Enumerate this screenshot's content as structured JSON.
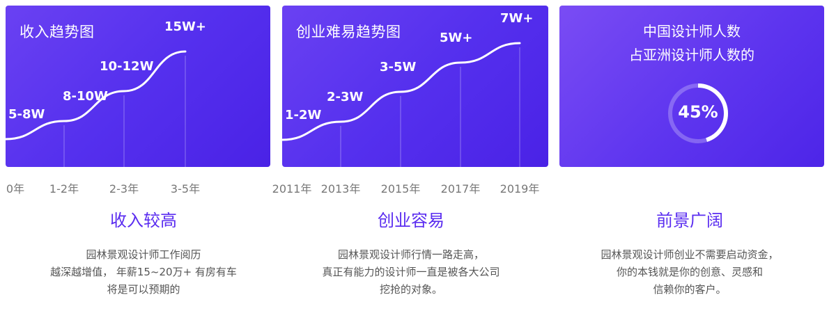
{
  "chart_data": [
    {
      "type": "line",
      "title": "收入趋势图",
      "categories": [
        "0年",
        "1-2年",
        "2-3年",
        "3-5年"
      ],
      "point_labels": [
        "5-8W",
        "8-10W",
        "10-12W",
        "15W+"
      ],
      "values": [
        6.5,
        9,
        11,
        15
      ]
    },
    {
      "type": "line",
      "title": "创业难易趋势图",
      "categories": [
        "2011年",
        "2013年",
        "2015年",
        "2017年",
        "2019年"
      ],
      "point_labels": [
        "1-2W",
        "2-3W",
        "3-5W",
        "5W+",
        "7W+"
      ],
      "values": [
        1.5,
        2.5,
        4,
        5,
        7
      ]
    }
  ],
  "share_card": {
    "title_line1": "中国设计师人数",
    "title_line2": "占亚洲设计师人数的",
    "percent_label": "45%",
    "percent_value": 45
  },
  "columns": [
    {
      "heading": "收入较高",
      "lines": [
        "园林景观设计师工作阅历",
        "越深越增值， 年薪15~20万+ 有房有车",
        "将是可以预期的"
      ]
    },
    {
      "heading": "创业容易",
      "lines": [
        "园林景观设计师行情一路走高，",
        "真正有能力的设计师一直是被各大公司",
        "挖抢的对象。"
      ]
    },
    {
      "heading": "前景广阔",
      "lines": [
        "园林景观设计师创业不需要启动资金，",
        "你的本钱就是你的创意、灵感和",
        "信赖你的客户。"
      ]
    }
  ],
  "colors": {
    "card_gradient": [
      "#6a41f2",
      "#4a22e6"
    ],
    "heading": "#5a2cf0",
    "axis_text": "#777777",
    "body_text": "#555555"
  }
}
